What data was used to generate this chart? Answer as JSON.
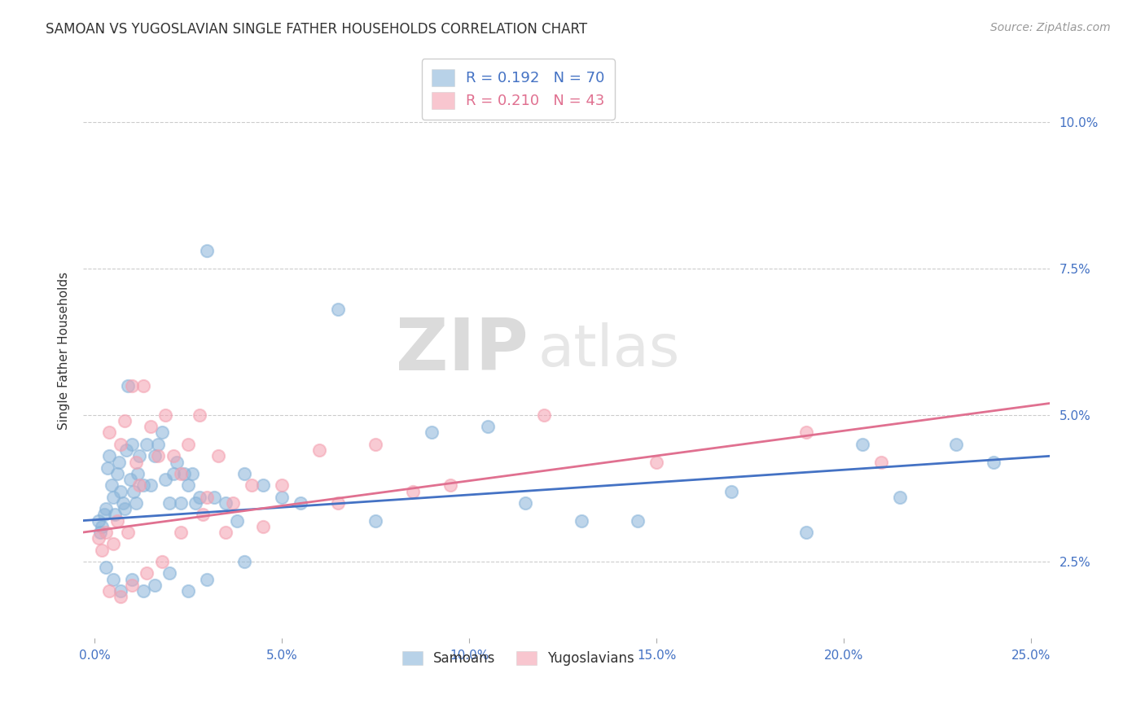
{
  "title": "SAMOAN VS YUGOSLAVIAN SINGLE FATHER HOUSEHOLDS CORRELATION CHART",
  "source": "Source: ZipAtlas.com",
  "xlabel_vals": [
    0.0,
    5.0,
    10.0,
    15.0,
    20.0,
    25.0
  ],
  "ylabel_vals": [
    2.5,
    5.0,
    7.5,
    10.0
  ],
  "ylabel_label": "Single Father Households",
  "xlim": [
    -0.3,
    25.5
  ],
  "ylim": [
    1.2,
    11.0
  ],
  "watermark_zip": "ZIP",
  "watermark_atlas": "atlas",
  "samoans_color": "#89b4d9",
  "yugoslavians_color": "#f4a0b0",
  "blue_line_color": "#4472c4",
  "pink_line_color": "#e07090",
  "background_color": "#ffffff",
  "grid_color": "#cccccc",
  "samoans_R": 0.192,
  "samoans_N": 70,
  "yugoslavians_R": 0.21,
  "yugoslavians_N": 43,
  "samoans_x": [
    0.1,
    0.15,
    0.2,
    0.25,
    0.3,
    0.35,
    0.4,
    0.45,
    0.5,
    0.55,
    0.6,
    0.65,
    0.7,
    0.75,
    0.8,
    0.85,
    0.9,
    0.95,
    1.0,
    1.05,
    1.1,
    1.15,
    1.2,
    1.3,
    1.4,
    1.5,
    1.6,
    1.7,
    1.8,
    1.9,
    2.0,
    2.1,
    2.2,
    2.3,
    2.4,
    2.5,
    2.6,
    2.7,
    2.8,
    3.0,
    3.2,
    3.5,
    3.8,
    4.0,
    4.5,
    5.0,
    5.5,
    6.5,
    7.5,
    9.0,
    10.5,
    11.5,
    13.0,
    14.5,
    17.0,
    19.0,
    20.5,
    21.5,
    23.0,
    24.0,
    0.3,
    0.5,
    0.7,
    1.0,
    1.3,
    1.6,
    2.0,
    2.5,
    3.0,
    4.0
  ],
  "samoans_y": [
    3.2,
    3.0,
    3.1,
    3.3,
    3.4,
    4.1,
    4.3,
    3.8,
    3.6,
    3.3,
    4.0,
    4.2,
    3.7,
    3.5,
    3.4,
    4.4,
    5.5,
    3.9,
    4.5,
    3.7,
    3.5,
    4.0,
    4.3,
    3.8,
    4.5,
    3.8,
    4.3,
    4.5,
    4.7,
    3.9,
    3.5,
    4.0,
    4.2,
    3.5,
    4.0,
    3.8,
    4.0,
    3.5,
    3.6,
    7.8,
    3.6,
    3.5,
    3.2,
    4.0,
    3.8,
    3.6,
    3.5,
    6.8,
    3.2,
    4.7,
    4.8,
    3.5,
    3.2,
    3.2,
    3.7,
    3.0,
    4.5,
    3.6,
    4.5,
    4.2,
    2.4,
    2.2,
    2.0,
    2.2,
    2.0,
    2.1,
    2.3,
    2.0,
    2.2,
    2.5
  ],
  "yugoslavians_x": [
    0.1,
    0.2,
    0.3,
    0.4,
    0.5,
    0.6,
    0.7,
    0.8,
    0.9,
    1.0,
    1.1,
    1.2,
    1.3,
    1.5,
    1.7,
    1.9,
    2.1,
    2.3,
    2.5,
    2.8,
    3.0,
    3.3,
    3.7,
    4.2,
    5.0,
    6.0,
    7.5,
    9.5,
    12.0,
    15.0,
    19.0,
    21.0,
    0.4,
    0.7,
    1.0,
    1.4,
    1.8,
    2.3,
    2.9,
    3.5,
    4.5,
    6.5,
    8.5
  ],
  "yugoslavians_y": [
    2.9,
    2.7,
    3.0,
    4.7,
    2.8,
    3.2,
    4.5,
    4.9,
    3.0,
    5.5,
    4.2,
    3.8,
    5.5,
    4.8,
    4.3,
    5.0,
    4.3,
    4.0,
    4.5,
    5.0,
    3.6,
    4.3,
    3.5,
    3.8,
    3.8,
    4.4,
    4.5,
    3.8,
    5.0,
    4.2,
    4.7,
    4.2,
    2.0,
    1.9,
    2.1,
    2.3,
    2.5,
    3.0,
    3.3,
    3.0,
    3.1,
    3.5,
    3.7
  ]
}
